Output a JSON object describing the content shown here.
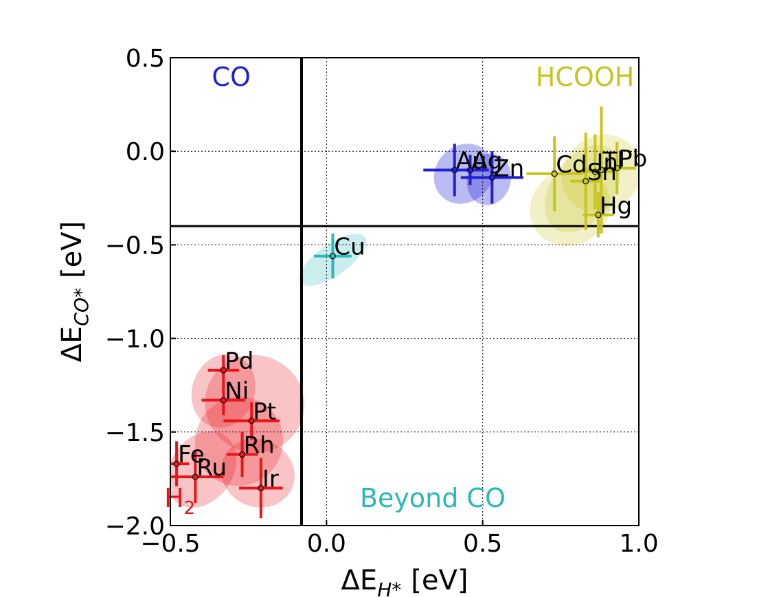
{
  "chart_data": {
    "type": "scatter",
    "xlabel": "ΔE",
    "xlabel_sub": "H*",
    "xlabel_unit": "[eV]",
    "ylabel": "ΔE",
    "ylabel_sub": "CO*",
    "ylabel_unit": "[eV]",
    "xlim": [
      -0.5,
      1.0
    ],
    "ylim": [
      -2.0,
      0.5
    ],
    "xticks": [
      -0.5,
      0.0,
      0.5,
      1.0
    ],
    "xtick_labels": [
      "−0.5",
      "0.0",
      "0.5",
      "1.0"
    ],
    "yticks": [
      -2.0,
      -1.5,
      -1.0,
      -0.5,
      0.0,
      0.5
    ],
    "ytick_labels": [
      "−2.0",
      "−1.5",
      "−1.0",
      "−0.5",
      "0.0",
      "0.5"
    ],
    "grid": true,
    "threshold_lines": {
      "x": -0.08,
      "y": -0.4
    },
    "colors": {
      "H2": "#e8141a",
      "CO": "#1f1fd6",
      "HCOOH": "#c8c41e",
      "BeyondCO": "#2ab8b8"
    },
    "regions": [
      {
        "key": "CO",
        "label": "CO",
        "color": "#1f1fd6"
      },
      {
        "key": "HCOOH",
        "label": "HCOOH",
        "color": "#c8c41e"
      },
      {
        "key": "BeyondCO",
        "label": "Beyond CO",
        "color": "#2ab8b8"
      },
      {
        "key": "H2",
        "label": "H",
        "sub": "2",
        "color": "#e8141a"
      }
    ],
    "points": [
      {
        "label": "Pd",
        "x": -0.33,
        "y": -1.17,
        "xerr": 0.05,
        "yerr": 0.08,
        "group": "H2"
      },
      {
        "label": "Ni",
        "x": -0.33,
        "y": -1.33,
        "xerr": 0.07,
        "yerr": 0.08,
        "group": "H2"
      },
      {
        "label": "Pt",
        "x": -0.24,
        "y": -1.44,
        "xerr": 0.09,
        "yerr": 0.1,
        "group": "H2"
      },
      {
        "label": "Rh",
        "x": -0.27,
        "y": -1.62,
        "xerr": 0.05,
        "yerr": 0.12,
        "group": "H2"
      },
      {
        "label": "Fe",
        "x": -0.48,
        "y": -1.67,
        "xerr": 0.04,
        "yerr": 0.12,
        "group": "H2"
      },
      {
        "label": "Ru",
        "x": -0.42,
        "y": -1.74,
        "xerr": 0.09,
        "yerr": 0.14,
        "group": "H2"
      },
      {
        "label": "Ir",
        "x": -0.21,
        "y": -1.8,
        "xerr": 0.07,
        "yerr": 0.16,
        "group": "H2"
      },
      {
        "label": "Cu",
        "x": 0.02,
        "y": -0.56,
        "xerr": 0.06,
        "yerr": 0.12,
        "group": "BeyondCO"
      },
      {
        "label": "Au",
        "x": 0.41,
        "y": -0.1,
        "xerr": 0.1,
        "yerr": 0.14,
        "group": "CO"
      },
      {
        "label": "Ag",
        "x": 0.46,
        "y": -0.1,
        "xerr": 0.06,
        "yerr": 0.08,
        "group": "CO"
      },
      {
        "label": "Zn",
        "x": 0.53,
        "y": -0.14,
        "xerr": 0.1,
        "yerr": 0.14,
        "group": "CO"
      },
      {
        "label": "Cd",
        "x": 0.73,
        "y": -0.12,
        "xerr": 0.09,
        "yerr": 0.2,
        "group": "HCOOH"
      },
      {
        "label": "In",
        "x": 0.86,
        "y": -0.11,
        "xerr": 0.06,
        "yerr": 0.2,
        "group": "HCOOH"
      },
      {
        "label": "Tl",
        "x": 0.88,
        "y": -0.1,
        "xerr": 0.05,
        "yerr": 0.34,
        "group": "HCOOH"
      },
      {
        "label": "Pb",
        "x": 0.93,
        "y": -0.09,
        "xerr": 0.06,
        "yerr": 0.14,
        "group": "HCOOH"
      },
      {
        "label": "Sn",
        "x": 0.83,
        "y": -0.16,
        "xerr": 0.05,
        "yerr": 0.26,
        "group": "HCOOH"
      },
      {
        "label": "Hg",
        "x": 0.87,
        "y": -0.34,
        "xerr": 0.05,
        "yerr": 0.12,
        "group": "HCOOH"
      }
    ],
    "ellipses": [
      {
        "group": "H2",
        "cx": -0.23,
        "cy": -1.35,
        "rx": 0.16,
        "ry": 0.26,
        "rot": 25,
        "alpha": 0.25
      },
      {
        "group": "H2",
        "cx": -0.33,
        "cy": -1.28,
        "rx": 0.1,
        "ry": 0.2,
        "rot": 20,
        "alpha": 0.25
      },
      {
        "group": "H2",
        "cx": -0.28,
        "cy": -1.55,
        "rx": 0.14,
        "ry": 0.24,
        "rot": 30,
        "alpha": 0.25
      },
      {
        "group": "H2",
        "cx": -0.4,
        "cy": -1.7,
        "rx": 0.1,
        "ry": 0.22,
        "rot": 35,
        "alpha": 0.25
      },
      {
        "group": "H2",
        "cx": -0.22,
        "cy": -1.72,
        "rx": 0.12,
        "ry": 0.18,
        "rot": 25,
        "alpha": 0.25
      },
      {
        "group": "BeyondCO",
        "cx": 0.02,
        "cy": -0.58,
        "rx": 0.05,
        "ry": 0.21,
        "rot": 55,
        "alpha": 0.25
      },
      {
        "group": "CO",
        "cx": 0.44,
        "cy": -0.12,
        "rx": 0.09,
        "ry": 0.17,
        "rot": 45,
        "alpha": 0.3
      },
      {
        "group": "CO",
        "cx": 0.52,
        "cy": -0.15,
        "rx": 0.07,
        "ry": 0.14,
        "rot": 15,
        "alpha": 0.3
      },
      {
        "group": "HCOOH",
        "cx": 0.82,
        "cy": -0.2,
        "rx": 0.1,
        "ry": 0.26,
        "rot": 35,
        "alpha": 0.25
      },
      {
        "group": "HCOOH",
        "cx": 0.88,
        "cy": -0.12,
        "rx": 0.12,
        "ry": 0.22,
        "rot": 50,
        "alpha": 0.25
      },
      {
        "group": "HCOOH",
        "cx": 0.78,
        "cy": -0.3,
        "rx": 0.12,
        "ry": 0.22,
        "rot": 60,
        "alpha": 0.25
      }
    ]
  }
}
